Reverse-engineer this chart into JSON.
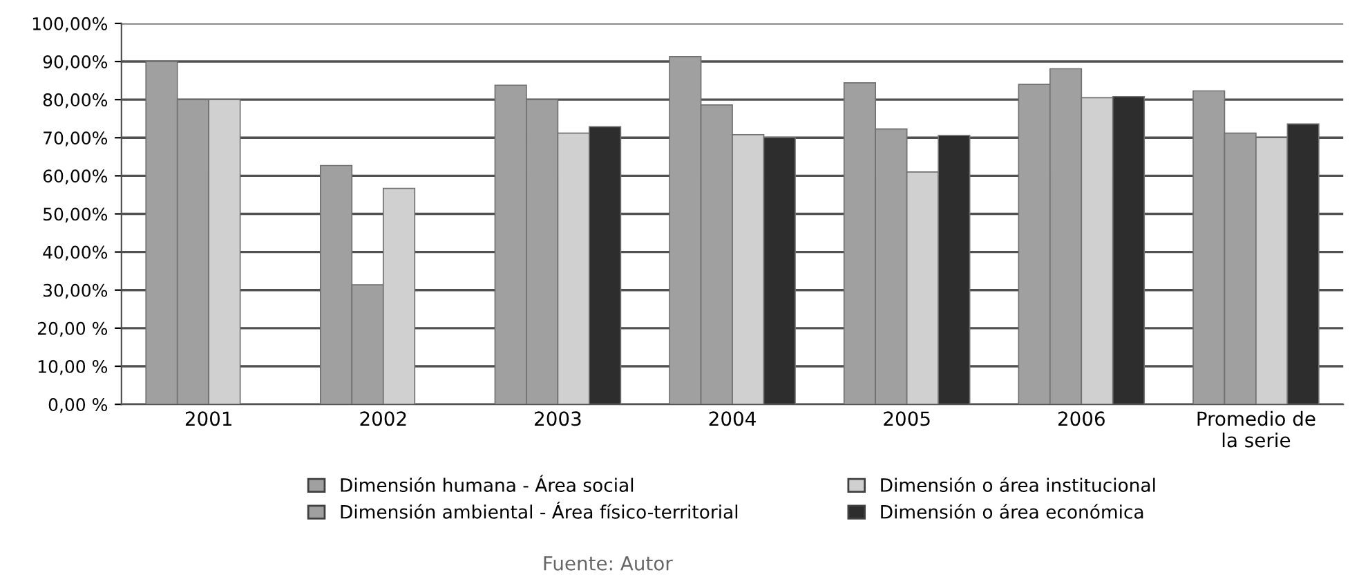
{
  "chart_data": {
    "type": "bar",
    "categories": [
      "2001",
      "2002",
      "2003",
      "2004",
      "2005",
      "2006",
      "Promedio de\nla serie"
    ],
    "series": [
      {
        "name": "Dimensión humana - Área social",
        "color": "#a0a0a0",
        "values": [
          90,
          62.7,
          83.8,
          91.3,
          84.4,
          84.0,
          82.3
        ]
      },
      {
        "name": "Dimensión ambiental - Área físico-territorial",
        "color": "#a0a0a0",
        "values": [
          80,
          31.4,
          80,
          78.6,
          72.3,
          88.1,
          71.2
        ]
      },
      {
        "name": "Dimensión o área institucional",
        "color": "#d0d0d0",
        "values": [
          80,
          56.7,
          71.2,
          70.8,
          61.0,
          80.5,
          70.0
        ]
      },
      {
        "name": "Dimensión o área económica",
        "color": "#2d2d2d",
        "values": [
          null,
          null,
          72.9,
          70.0,
          70.6,
          80.8,
          73.6
        ]
      }
    ],
    "ylim": [
      0,
      100
    ],
    "yticks": [
      {
        "value": 0,
        "label": "0,00 %"
      },
      {
        "value": 10,
        "label": "10,00 %"
      },
      {
        "value": 20,
        "label": "20,00 %"
      },
      {
        "value": 30,
        "label": "30,00%"
      },
      {
        "value": 40,
        "label": "40,00%"
      },
      {
        "value": 50,
        "label": "50,00%"
      },
      {
        "value": 60,
        "label": "60,00%"
      },
      {
        "value": 70,
        "label": "70,00%"
      },
      {
        "value": 80,
        "label": "80,00%"
      },
      {
        "value": 90,
        "label": "90,00%"
      },
      {
        "value": 100,
        "label": "100,00%"
      }
    ],
    "grid": "y",
    "legend": "bottom",
    "annotations": [
      "Fuente: Autor"
    ]
  }
}
